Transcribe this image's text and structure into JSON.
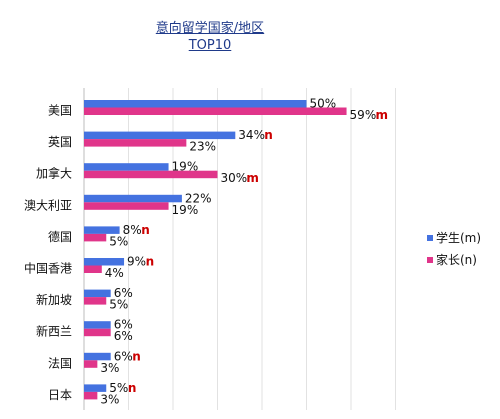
{
  "chart_data": {
    "type": "bar",
    "orientation": "horizontal",
    "title_lines": [
      "意向留学国家/地区",
      "TOP10"
    ],
    "categories": [
      "美国",
      "英国",
      "加拿大",
      "澳大利亚",
      "德国",
      "中国香港",
      "新加坡",
      "新西兰",
      "法国",
      "日本"
    ],
    "series": [
      {
        "name": "学生(m)",
        "color": "#4472e0",
        "values": [
          50,
          34,
          19,
          22,
          8,
          9,
          6,
          6,
          6,
          5
        ],
        "labels": [
          "50%",
          "34%",
          "19%",
          "22%",
          "8%",
          "9%",
          "6%",
          "6%",
          "6%",
          "5%"
        ],
        "markers": [
          "",
          "n",
          "",
          "",
          "n",
          "n",
          "",
          "",
          "n",
          "n"
        ]
      },
      {
        "name": "家长(n)",
        "color": "#e0358a",
        "values": [
          59,
          23,
          30,
          19,
          5,
          4,
          5,
          6,
          3,
          3
        ],
        "labels": [
          "59%",
          "23%",
          "30%",
          "19%",
          "5%",
          "4%",
          "5%",
          "6%",
          "3%",
          "3%"
        ],
        "markers": [
          "m",
          "",
          "m",
          "",
          "",
          "",
          "",
          "",
          "",
          ""
        ]
      }
    ],
    "xlim": [
      0,
      90
    ],
    "grid": true,
    "legend_position": "right"
  }
}
